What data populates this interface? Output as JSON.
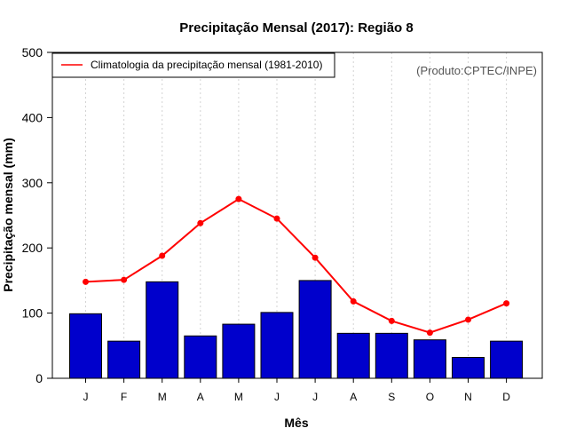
{
  "chart_data": {
    "type": "bar",
    "title": "Precipitação Mensal (2017): Região 8",
    "xlabel": "Mês",
    "ylabel": "Precipitação mensal (mm)",
    "ylim": [
      0,
      500
    ],
    "yticks": [
      0,
      100,
      200,
      300,
      400,
      500
    ],
    "categories": [
      "J",
      "F",
      "M",
      "A",
      "M",
      "J",
      "J",
      "A",
      "S",
      "O",
      "N",
      "D"
    ],
    "series": [
      {
        "name": "Precipitação mensal (2017)",
        "kind": "bar",
        "color": "#0000cc",
        "values": [
          99,
          57,
          148,
          65,
          83,
          101,
          150,
          69,
          69,
          59,
          32,
          57
        ]
      },
      {
        "name": "Climatologia da precipitação mensal (1981-2010)",
        "kind": "line",
        "color": "#ff0000",
        "values": [
          148,
          151,
          188,
          238,
          275,
          245,
          185,
          118,
          88,
          70,
          90,
          115
        ]
      }
    ],
    "legend": {
      "position": "top-left",
      "entries": [
        "Climatologia da precipitação mensal (1981-2010)"
      ]
    },
    "annotation": "(Produto:CPTEC/INPE)",
    "grid": "vertical-dashed"
  }
}
